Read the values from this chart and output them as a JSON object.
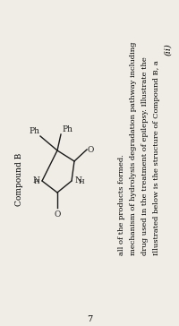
{
  "background_color": "#f0ede6",
  "question_number": "(ii)",
  "question_text_lines": [
    "    Illustrated below is the structure of Compound B, a",
    "drug used in the treatment of epilepsy. Illustrate the",
    "mechanism of hydrolysis degradation pathway including",
    "all of the products formed."
  ],
  "compound_label": "Compound B",
  "page_number": "7",
  "fig_width": 2.0,
  "fig_height": 3.64,
  "dpi": 100,
  "ring_color": "#1a1a1a",
  "line_width": 1.0,
  "font_size_struct": 6.5,
  "font_size_text": 6.0,
  "font_size_qnum": 7.0
}
